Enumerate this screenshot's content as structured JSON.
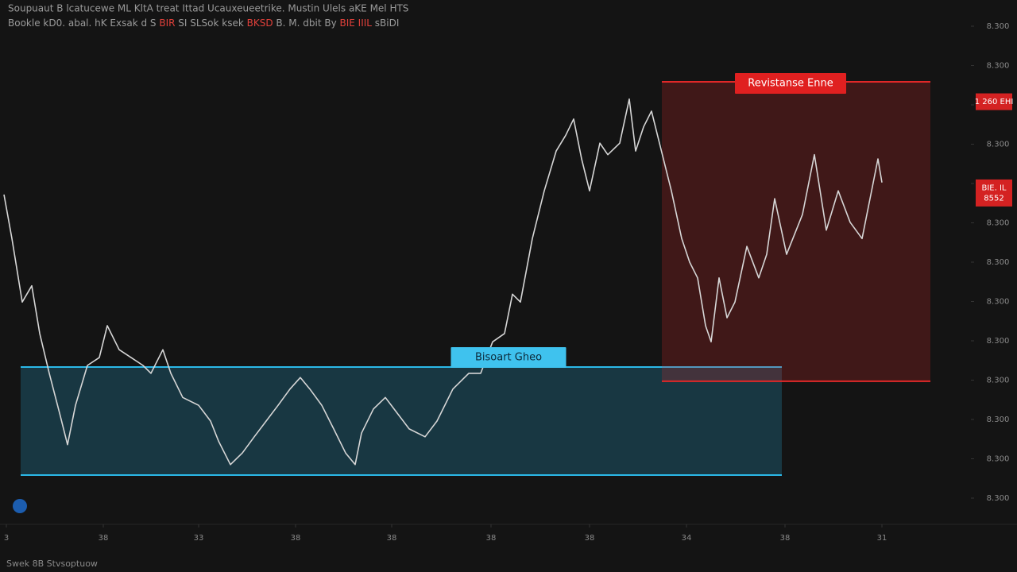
{
  "header": {
    "line1": "Soupuaut B lcatucewe ML KltA treat Ittad Ucauxeueetrike. Mustin Ulels aKE Mel HTS",
    "line2": [
      {
        "text": "Bookle kD0. abal. hK Exsak d S ",
        "color": "#9a9a9a"
      },
      {
        "text": "BIR",
        "color": "#e0403a"
      },
      {
        "text": " SI SLSok ksek ",
        "color": "#9a9a9a"
      },
      {
        "text": "BKSD",
        "color": "#e0403a"
      },
      {
        "text": " B. M. dbit By ",
        "color": "#9a9a9a"
      },
      {
        "text": "BIE IIIL",
        "color": "#e0403a"
      },
      {
        "text": " sBiDI",
        "color": "#9a9a9a"
      }
    ]
  },
  "footer": "Swek 8B Stvsoptuow",
  "chart_data": {
    "type": "line",
    "series": [
      {
        "color": "#d6d6d6",
        "x": [
          5,
          15,
          28,
          40,
          50,
          62,
          75,
          85,
          95,
          110,
          125,
          135,
          150,
          165,
          180,
          190,
          205,
          215,
          230,
          250,
          265,
          275,
          290,
          305,
          320,
          335,
          350,
          365,
          378,
          390,
          405,
          420,
          435,
          447,
          455,
          470,
          485,
          500,
          515,
          535,
          550,
          570,
          590,
          605,
          620,
          635,
          645,
          655,
          670,
          685,
          700,
          712,
          722,
          732,
          742,
          755,
          765,
          780,
          792,
          800,
          810,
          820,
          830,
          845,
          858,
          868,
          878,
          888,
          895,
          905,
          915,
          925,
          940,
          955,
          965,
          975,
          990,
          1010,
          1025,
          1040,
          1055,
          1070,
          1085,
          1095,
          1105,
          1110
        ],
        "values": [
          62.9,
          54.5,
          42.4,
          45.5,
          36.4,
          28.8,
          21.2,
          15.2,
          22.7,
          30.3,
          31.8,
          37.9,
          33.3,
          31.8,
          30.3,
          28.8,
          33.3,
          28.8,
          24.2,
          22.7,
          19.7,
          15.9,
          11.4,
          13.6,
          16.7,
          19.7,
          22.7,
          25.8,
          28,
          25.8,
          22.7,
          18.2,
          13.6,
          11.4,
          17.4,
          22,
          24.2,
          21.2,
          18.2,
          16.7,
          19.7,
          25.8,
          28.8,
          28.8,
          34.8,
          36.4,
          43.9,
          42.4,
          54.5,
          63.6,
          71.2,
          74.2,
          77.3,
          69.7,
          63.6,
          72.7,
          70.5,
          72.7,
          81.1,
          71.2,
          75.8,
          78.8,
          72.7,
          63.6,
          54.5,
          50,
          47,
          37.9,
          34.8,
          47,
          39.4,
          42.4,
          53,
          47,
          51.5,
          62.1,
          51.5,
          59.1,
          70.5,
          56.1,
          63.6,
          57.6,
          54.5,
          62.1,
          69.7,
          65.2
        ]
      }
    ],
    "xlim": [
      0,
      1220
    ],
    "ylim": [
      0,
      100
    ],
    "yticks": [
      {
        "value": 5,
        "label": "8.300"
      },
      {
        "value": 12.5,
        "label": "8.300"
      },
      {
        "value": 20,
        "label": "8.300"
      },
      {
        "value": 27.5,
        "label": "8.300"
      },
      {
        "value": 35,
        "label": "8.300"
      },
      {
        "value": 42.5,
        "label": "8.300"
      },
      {
        "value": 50,
        "label": "8.300"
      },
      {
        "value": 57.5,
        "label": "8.300"
      },
      {
        "value": 65,
        "label": "8.300"
      },
      {
        "value": 72.5,
        "label": "8.300"
      },
      {
        "value": 80,
        "label": "8.300"
      },
      {
        "value": 87.5,
        "label": "8.300"
      },
      {
        "value": 95,
        "label": "8.300"
      }
    ],
    "xticks": [
      {
        "value": 8,
        "label": "3"
      },
      {
        "value": 130,
        "label": "38"
      },
      {
        "value": 250,
        "label": "33"
      },
      {
        "value": 372,
        "label": "38"
      },
      {
        "value": 493,
        "label": "38"
      },
      {
        "value": 618,
        "label": "38"
      },
      {
        "value": 742,
        "label": "38"
      },
      {
        "value": 864,
        "label": "34"
      },
      {
        "value": 988,
        "label": "38"
      },
      {
        "value": 1110,
        "label": "31"
      }
    ],
    "price_tags": [
      {
        "value": 80.6,
        "labels": [
          "1 260 EHI"
        ]
      },
      {
        "value": 63.2,
        "labels": [
          "BIE. IL",
          "8552"
        ]
      }
    ],
    "zones": [
      {
        "label": "Bisoart Gheo",
        "color": "#2bb8e8",
        "x": [
          26,
          984
        ],
        "y": [
          9.4,
          30
        ]
      },
      {
        "label": "Revistanse Enne",
        "color": "#e02828",
        "x": [
          833,
          1171
        ],
        "y": [
          27.3,
          84.4
        ]
      }
    ]
  }
}
